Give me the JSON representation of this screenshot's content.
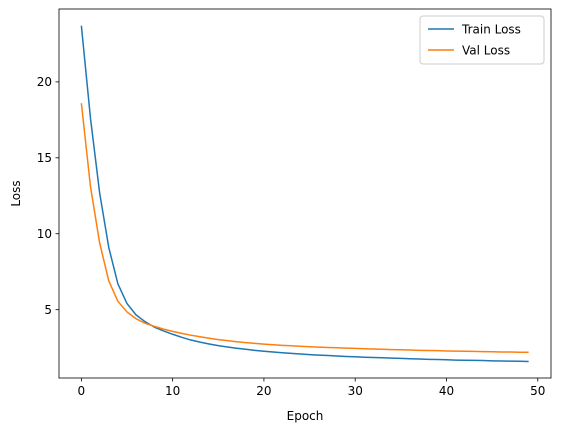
{
  "chart_data": {
    "type": "line",
    "xlabel": "Epoch",
    "ylabel": "Loss",
    "xlim": [
      -2.45,
      51.45
    ],
    "ylim": [
      0.5,
      24.8
    ],
    "xticks": [
      0,
      10,
      20,
      30,
      40,
      50
    ],
    "yticks": [
      5,
      10,
      15,
      20
    ],
    "grid": false,
    "legend": "top-right",
    "series": [
      {
        "name": "Train Loss",
        "color": "#1f77b4",
        "x": [
          0,
          1,
          2,
          3,
          4,
          5,
          6,
          7,
          8,
          9,
          10,
          11,
          12,
          13,
          14,
          15,
          16,
          17,
          18,
          19,
          20,
          21,
          22,
          23,
          24,
          25,
          26,
          27,
          28,
          29,
          30,
          31,
          32,
          33,
          34,
          35,
          36,
          37,
          38,
          39,
          40,
          41,
          42,
          43,
          44,
          45,
          46,
          47,
          48,
          49
        ],
        "values": [
          23.7,
          17.6,
          12.7,
          9.1,
          6.7,
          5.4,
          4.65,
          4.2,
          3.85,
          3.6,
          3.38,
          3.18,
          3.0,
          2.86,
          2.74,
          2.63,
          2.54,
          2.46,
          2.39,
          2.32,
          2.26,
          2.21,
          2.16,
          2.12,
          2.08,
          2.04,
          2.01,
          1.98,
          1.95,
          1.92,
          1.9,
          1.87,
          1.85,
          1.83,
          1.81,
          1.79,
          1.77,
          1.75,
          1.73,
          1.72,
          1.7,
          1.68,
          1.67,
          1.66,
          1.65,
          1.63,
          1.62,
          1.61,
          1.6,
          1.59
        ]
      },
      {
        "name": "Val Loss",
        "color": "#ff7f0e",
        "x": [
          0,
          1,
          2,
          3,
          4,
          5,
          6,
          7,
          8,
          9,
          10,
          11,
          12,
          13,
          14,
          15,
          16,
          17,
          18,
          19,
          20,
          21,
          22,
          23,
          24,
          25,
          26,
          27,
          28,
          29,
          30,
          31,
          32,
          33,
          34,
          35,
          36,
          37,
          38,
          39,
          40,
          41,
          42,
          43,
          44,
          45,
          46,
          47,
          48,
          49
        ],
        "values": [
          18.6,
          13.1,
          9.4,
          6.9,
          5.55,
          4.85,
          4.4,
          4.1,
          3.9,
          3.72,
          3.57,
          3.44,
          3.32,
          3.22,
          3.12,
          3.03,
          2.96,
          2.89,
          2.83,
          2.78,
          2.73,
          2.69,
          2.65,
          2.62,
          2.59,
          2.56,
          2.53,
          2.51,
          2.49,
          2.47,
          2.45,
          2.43,
          2.41,
          2.39,
          2.37,
          2.36,
          2.34,
          2.32,
          2.31,
          2.3,
          2.28,
          2.27,
          2.26,
          2.25,
          2.24,
          2.23,
          2.21,
          2.21,
          2.2,
          2.2
        ]
      }
    ]
  }
}
